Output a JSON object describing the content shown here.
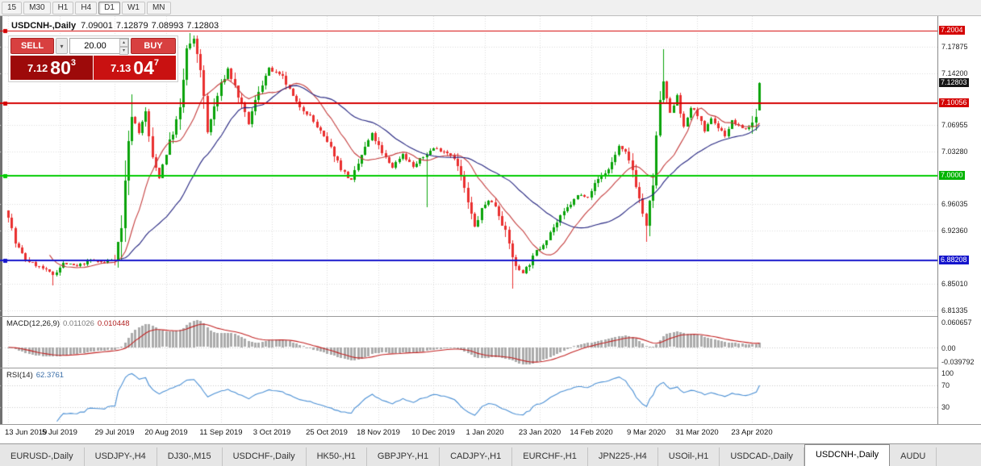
{
  "toolbar": {
    "timeframes": [
      "15",
      "M30",
      "H1",
      "H4",
      "D1",
      "W1",
      "MN"
    ],
    "active_timeframe": "D1"
  },
  "chart": {
    "symbol": "USDCNH-,Daily",
    "ohlc": {
      "open": "7.09001",
      "high": "7.12879",
      "low": "7.08993",
      "close": "7.12803"
    },
    "one_click": {
      "sell_label": "SELL",
      "buy_label": "BUY",
      "volume": "20.00",
      "bid": {
        "big": "7.12",
        "pips": "80",
        "sup": "3",
        "bg": "#9d0a0a"
      },
      "ask": {
        "big": "7.13",
        "pips": "04",
        "sup": "7",
        "bg": "#c91111"
      }
    }
  },
  "price_axis": {
    "ticks": [
      "7.17875",
      "7.14200",
      "7.06955",
      "7.03280",
      "6.96035",
      "6.92360",
      "6.85010",
      "6.81335"
    ],
    "levels": [
      {
        "label": "7.2004",
        "bg": "#d40000"
      },
      {
        "label": "7.10056",
        "bg": "#d40000"
      },
      {
        "label": "7.0000",
        "bg": "#00b400"
      },
      {
        "label": "6.88208",
        "bg": "#1414cc"
      }
    ],
    "current": {
      "label": "7.12803",
      "bg": "#151515"
    }
  },
  "indicators": {
    "macd": {
      "name": "MACD(12,26,9)",
      "value_main": "0.011026",
      "value_signal": "0.010448",
      "axis_top": "0.060657",
      "axis_zero": "0.00",
      "axis_bottom": "-0.039792"
    },
    "rsi": {
      "name": "RSI(14)",
      "value": "62.3761",
      "axis_top": "100",
      "axis_upper": "70",
      "axis_lower": "30",
      "levels": [
        70,
        30
      ]
    }
  },
  "tabs": {
    "items": [
      "EURUSD-,Daily",
      "USDJPY-,H4",
      "DJ30-,M15",
      "USDCHF-,Daily",
      "HK50-,H1",
      "GBPJPY-,H1",
      "CADJPY-,H1",
      "EURCHF-,H1",
      "JPN225-,H4",
      "USOil-,H1",
      "USDCAD-,Daily",
      "USDCNH-,Daily",
      "AUDU"
    ],
    "active": "USDCNH-,Daily"
  },
  "chart_data": {
    "type": "candlestick",
    "symbol": "USDCNH",
    "timeframe": "Daily",
    "n_candles": 220,
    "seed": 7,
    "y_range": [
      6.805,
      7.221
    ],
    "last_candle": {
      "o": 7.09001,
      "h": 7.12879,
      "l": 7.08993,
      "c": 7.12803
    },
    "price_anchors": [
      [
        0,
        6.945
      ],
      [
        2,
        6.906
      ],
      [
        5,
        6.883
      ],
      [
        10,
        6.871
      ],
      [
        13,
        6.862
      ],
      [
        16,
        6.878
      ],
      [
        20,
        6.874
      ],
      [
        24,
        6.882
      ],
      [
        28,
        6.879
      ],
      [
        31,
        6.886
      ],
      [
        33,
        6.925
      ],
      [
        34,
        6.998
      ],
      [
        36,
        7.085
      ],
      [
        38,
        7.06
      ],
      [
        40,
        7.088
      ],
      [
        42,
        7.022
      ],
      [
        44,
        6.998
      ],
      [
        46,
        7.032
      ],
      [
        48,
        7.06
      ],
      [
        50,
        7.09
      ],
      [
        52,
        7.175
      ],
      [
        54,
        7.188
      ],
      [
        56,
        7.15
      ],
      [
        58,
        7.06
      ],
      [
        60,
        7.095
      ],
      [
        62,
        7.125
      ],
      [
        64,
        7.148
      ],
      [
        67,
        7.11
      ],
      [
        70,
        7.072
      ],
      [
        73,
        7.118
      ],
      [
        76,
        7.148
      ],
      [
        80,
        7.136
      ],
      [
        84,
        7.1
      ],
      [
        88,
        7.082
      ],
      [
        91,
        7.06
      ],
      [
        94,
        7.038
      ],
      [
        97,
        7.01
      ],
      [
        100,
        6.992
      ],
      [
        103,
        7.028
      ],
      [
        106,
        7.058
      ],
      [
        109,
        7.03
      ],
      [
        112,
        7.012
      ],
      [
        115,
        7.03
      ],
      [
        118,
        7.012
      ],
      [
        121,
        7.026
      ],
      [
        124,
        7.038
      ],
      [
        127,
        7.034
      ],
      [
        130,
        7.026
      ],
      [
        132,
        6.998
      ],
      [
        134,
        6.962
      ],
      [
        136,
        6.928
      ],
      [
        138,
        6.952
      ],
      [
        140,
        6.966
      ],
      [
        142,
        6.958
      ],
      [
        144,
        6.935
      ],
      [
        146,
        6.905
      ],
      [
        148,
        6.872
      ],
      [
        150,
        6.866
      ],
      [
        152,
        6.878
      ],
      [
        154,
        6.895
      ],
      [
        156,
        6.905
      ],
      [
        158,
        6.922
      ],
      [
        160,
        6.935
      ],
      [
        163,
        6.955
      ],
      [
        166,
        6.972
      ],
      [
        169,
        6.972
      ],
      [
        172,
        6.995
      ],
      [
        175,
        7.008
      ],
      [
        178,
        7.04
      ],
      [
        180,
        7.03
      ],
      [
        182,
        7.008
      ],
      [
        184,
        6.968
      ],
      [
        186,
        6.928
      ],
      [
        188,
        6.99
      ],
      [
        190,
        7.105
      ],
      [
        191,
        7.128
      ],
      [
        193,
        7.085
      ],
      [
        195,
        7.112
      ],
      [
        197,
        7.066
      ],
      [
        199,
        7.094
      ],
      [
        201,
        7.085
      ],
      [
        203,
        7.06
      ],
      [
        205,
        7.08
      ],
      [
        207,
        7.066
      ],
      [
        209,
        7.056
      ],
      [
        211,
        7.075
      ],
      [
        213,
        7.068
      ],
      [
        215,
        7.064
      ],
      [
        217,
        7.072
      ],
      [
        218,
        7.086
      ],
      [
        219,
        7.128
      ]
    ],
    "long_wicks": [
      {
        "idx": 13,
        "low": 6.848
      },
      {
        "idx": 36,
        "high": 7.112
      },
      {
        "idx": 53,
        "high": 7.197
      },
      {
        "idx": 122,
        "low": 6.956
      },
      {
        "idx": 147,
        "low": 6.843
      },
      {
        "idx": 186,
        "low": 6.908
      },
      {
        "idx": 191,
        "high": 7.175
      }
    ],
    "hlines": [
      {
        "price": 7.2004,
        "color": "#d40000",
        "width": 1
      },
      {
        "price": 7.10056,
        "color": "#d40000",
        "width": 2
      },
      {
        "price": 7.0,
        "color": "#00cc00",
        "width": 2
      },
      {
        "price": 6.88208,
        "color": "#1414cc",
        "width": 2
      }
    ],
    "x_labels": [
      {
        "i": 0,
        "t": "13 Jun 2019"
      },
      {
        "i": 15,
        "t": "5 Jul 2019"
      },
      {
        "i": 31,
        "t": "29 Jul 2019"
      },
      {
        "i": 46,
        "t": "20 Aug 2019"
      },
      {
        "i": 62,
        "t": "11 Sep 2019"
      },
      {
        "i": 77,
        "t": "3 Oct 2019"
      },
      {
        "i": 93,
        "t": "25 Oct 2019"
      },
      {
        "i": 108,
        "t": "18 Nov 2019"
      },
      {
        "i": 124,
        "t": "10 Dec 2019"
      },
      {
        "i": 139,
        "t": "1 Jan 2020"
      },
      {
        "i": 155,
        "t": "23 Jan 2020"
      },
      {
        "i": 170,
        "t": "14 Feb 2020"
      },
      {
        "i": 186,
        "t": "9 Mar 2020"
      },
      {
        "i": 201,
        "t": "31 Mar 2020"
      },
      {
        "i": 217,
        "t": "23 Apr 2020"
      }
    ],
    "moving_averages": [
      {
        "period": 13,
        "color": "#c43c3c"
      },
      {
        "period": 34,
        "color": "#23237f"
      }
    ],
    "macd_params": [
      12,
      26,
      9
    ],
    "rsi_period": 14,
    "colors": {
      "up": "#09a309",
      "down": "#ea2f2f",
      "grid": "#dcdcdc",
      "macd_hist": "#ababab",
      "macd_signal": "#c22222",
      "rsi": "#4a8fd4"
    }
  }
}
